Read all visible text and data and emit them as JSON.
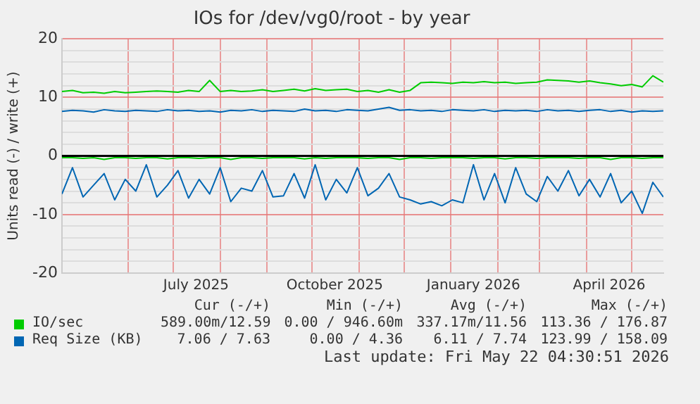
{
  "chart_data": {
    "type": "line",
    "title": "IOs for /dev/vg0/root - by year",
    "ylabel": "Units read (-) / write (+)",
    "x": [
      "2025-04-18",
      "2025-04-25",
      "2025-05-02",
      "2025-05-09",
      "2025-05-16",
      "2025-05-23",
      "2025-05-30",
      "2025-06-06",
      "2025-06-13",
      "2025-06-20",
      "2025-06-27",
      "2025-07-04",
      "2025-07-11",
      "2025-07-18",
      "2025-07-25",
      "2025-08-01",
      "2025-08-08",
      "2025-08-15",
      "2025-08-22",
      "2025-08-29",
      "2025-09-05",
      "2025-09-12",
      "2025-09-19",
      "2025-09-26",
      "2025-10-03",
      "2025-10-10",
      "2025-10-17",
      "2025-10-24",
      "2025-10-31",
      "2025-11-07",
      "2025-11-14",
      "2025-11-21",
      "2025-11-28",
      "2025-12-05",
      "2025-12-12",
      "2025-12-19",
      "2025-12-26",
      "2026-01-02",
      "2026-01-09",
      "2026-01-16",
      "2026-01-23",
      "2026-01-30",
      "2026-02-06",
      "2026-02-13",
      "2026-02-20",
      "2026-02-27",
      "2026-03-06",
      "2026-03-13",
      "2026-03-20",
      "2026-03-27",
      "2026-04-03",
      "2026-04-10",
      "2026-04-17",
      "2026-04-24",
      "2026-05-01",
      "2026-05-08",
      "2026-05-15",
      "2026-05-22"
    ],
    "series": [
      {
        "name": "IO/sec",
        "color": "#00cc00",
        "values": [
          11.0,
          11.2,
          10.8,
          10.9,
          10.7,
          11.0,
          10.8,
          10.9,
          11.0,
          11.1,
          11.0,
          10.9,
          11.2,
          11.0,
          12.9,
          11.0,
          11.2,
          11.0,
          11.1,
          11.3,
          11.0,
          11.2,
          11.4,
          11.1,
          11.5,
          11.2,
          11.3,
          11.4,
          11.0,
          11.2,
          10.9,
          11.3,
          10.9,
          11.2,
          12.5,
          12.6,
          12.5,
          12.4,
          12.6,
          12.5,
          12.7,
          12.5,
          12.6,
          12.4,
          12.5,
          12.6,
          13.0,
          12.9,
          12.8,
          12.6,
          12.8,
          12.5,
          12.3,
          12.0,
          12.2,
          11.8,
          13.7,
          12.6
        ]
      },
      {
        "color": "#00cc00",
        "values": [
          -0.3,
          -0.3,
          -0.4,
          -0.3,
          -0.6,
          -0.3,
          -0.3,
          -0.4,
          -0.3,
          -0.3,
          -0.5,
          -0.3,
          -0.3,
          -0.4,
          -0.3,
          -0.3,
          -0.6,
          -0.3,
          -0.3,
          -0.4,
          -0.3,
          -0.3,
          -0.3,
          -0.5,
          -0.3,
          -0.4,
          -0.3,
          -0.3,
          -0.3,
          -0.4,
          -0.3,
          -0.3,
          -0.6,
          -0.3,
          -0.3,
          -0.4,
          -0.3,
          -0.3,
          -0.3,
          -0.4,
          -0.3,
          -0.3,
          -0.5,
          -0.3,
          -0.3,
          -0.4,
          -0.3,
          -0.3,
          -0.3,
          -0.4,
          -0.3,
          -0.3,
          -0.6,
          -0.3,
          -0.3,
          -0.4,
          -0.3,
          -0.3
        ]
      },
      {
        "name": "Req Size (KB)",
        "color": "#0066b3",
        "values": [
          7.6,
          7.8,
          7.7,
          7.5,
          7.9,
          7.7,
          7.6,
          7.8,
          7.7,
          7.6,
          7.9,
          7.7,
          7.8,
          7.6,
          7.7,
          7.5,
          7.8,
          7.7,
          7.9,
          7.6,
          7.8,
          7.7,
          7.6,
          8.0,
          7.7,
          7.8,
          7.6,
          7.9,
          7.8,
          7.7,
          8.0,
          8.3,
          7.8,
          7.9,
          7.7,
          7.8,
          7.6,
          7.9,
          7.8,
          7.7,
          7.9,
          7.6,
          7.8,
          7.7,
          7.8,
          7.6,
          7.9,
          7.7,
          7.8,
          7.6,
          7.8,
          7.9,
          7.6,
          7.8,
          7.5,
          7.7,
          7.6,
          7.7
        ]
      },
      {
        "color": "#0066b3",
        "values": [
          -6.5,
          -2,
          -7,
          -5,
          -3,
          -7.5,
          -4,
          -6,
          -1.5,
          -7,
          -5,
          -2.5,
          -7.2,
          -4,
          -6.5,
          -2,
          -7.8,
          -5.5,
          -6,
          -2.5,
          -7,
          -6.8,
          -3,
          -7.2,
          -1.5,
          -7.5,
          -4,
          -6.3,
          -2,
          -6.8,
          -5.5,
          -3,
          -7,
          -7.5,
          -8.2,
          -7.8,
          -8.5,
          -7.5,
          -8,
          -1.5,
          -7.5,
          -3,
          -8,
          -2,
          -6.5,
          -7.8,
          -3.5,
          -6,
          -2.5,
          -6.8,
          -4,
          -7,
          -3,
          -8,
          -6,
          -9.8,
          -4.5,
          -7
        ]
      }
    ],
    "xlim": [
      "2025-04-18",
      "2026-05-22"
    ],
    "xticks": [
      {
        "value": "2025-06-01",
        "label": null
      },
      {
        "value": "2025-07-01",
        "label": null
      },
      {
        "value": "2025-07-16",
        "label": "July 2025"
      },
      {
        "value": "2025-08-01",
        "label": null
      },
      {
        "value": "2025-09-01",
        "label": null
      },
      {
        "value": "2025-10-01",
        "label": null
      },
      {
        "value": "2025-10-16",
        "label": "October 2025"
      },
      {
        "value": "2025-11-01",
        "label": null
      },
      {
        "value": "2025-12-01",
        "label": null
      },
      {
        "value": "2026-01-01",
        "label": null
      },
      {
        "value": "2026-01-16",
        "label": "January 2026"
      },
      {
        "value": "2026-02-01",
        "label": null
      },
      {
        "value": "2026-03-01",
        "label": null
      },
      {
        "value": "2026-04-01",
        "label": null
      },
      {
        "value": "2026-04-16",
        "label": "April 2026"
      },
      {
        "value": "2026-05-01",
        "label": null
      }
    ],
    "ylim": [
      -20,
      20
    ],
    "yticks": [
      -20,
      {
        "value": -18,
        "label": null
      },
      {
        "value": -16,
        "label": null
      },
      {
        "value": -14,
        "label": null
      },
      {
        "value": -12,
        "label": null
      },
      -10,
      {
        "value": -8,
        "label": null
      },
      {
        "value": -6,
        "label": null
      },
      {
        "value": -4,
        "label": null
      },
      {
        "value": -2,
        "label": null
      },
      0,
      {
        "value": 2,
        "label": null
      },
      {
        "value": 4,
        "label": null
      },
      {
        "value": 6,
        "label": null
      },
      {
        "value": 8,
        "label": null
      },
      10,
      {
        "value": 12,
        "label": null
      },
      {
        "value": 14,
        "label": null
      },
      {
        "value": 16,
        "label": null
      },
      {
        "value": 18,
        "label": null
      },
      20
    ],
    "grid": true,
    "ref_lines": [
      {
        "axis": "y",
        "value": 0,
        "color": "#000000"
      }
    ],
    "legend": "bottom",
    "annotations": [
      "Cur (-/+)",
      "Min (-/+)",
      "Avg (-/+)",
      "Max (-/+)",
      "589.00m/12.59",
      "0.00 / 946.60m",
      "337.17m/11.56",
      "113.36 / 176.87",
      "7.06 / 7.63",
      "0.00 / 4.36",
      "6.11 / 7.74",
      "123.99 / 158.09",
      "Last update: Fri May 22 04:30:51 2026"
    ]
  }
}
